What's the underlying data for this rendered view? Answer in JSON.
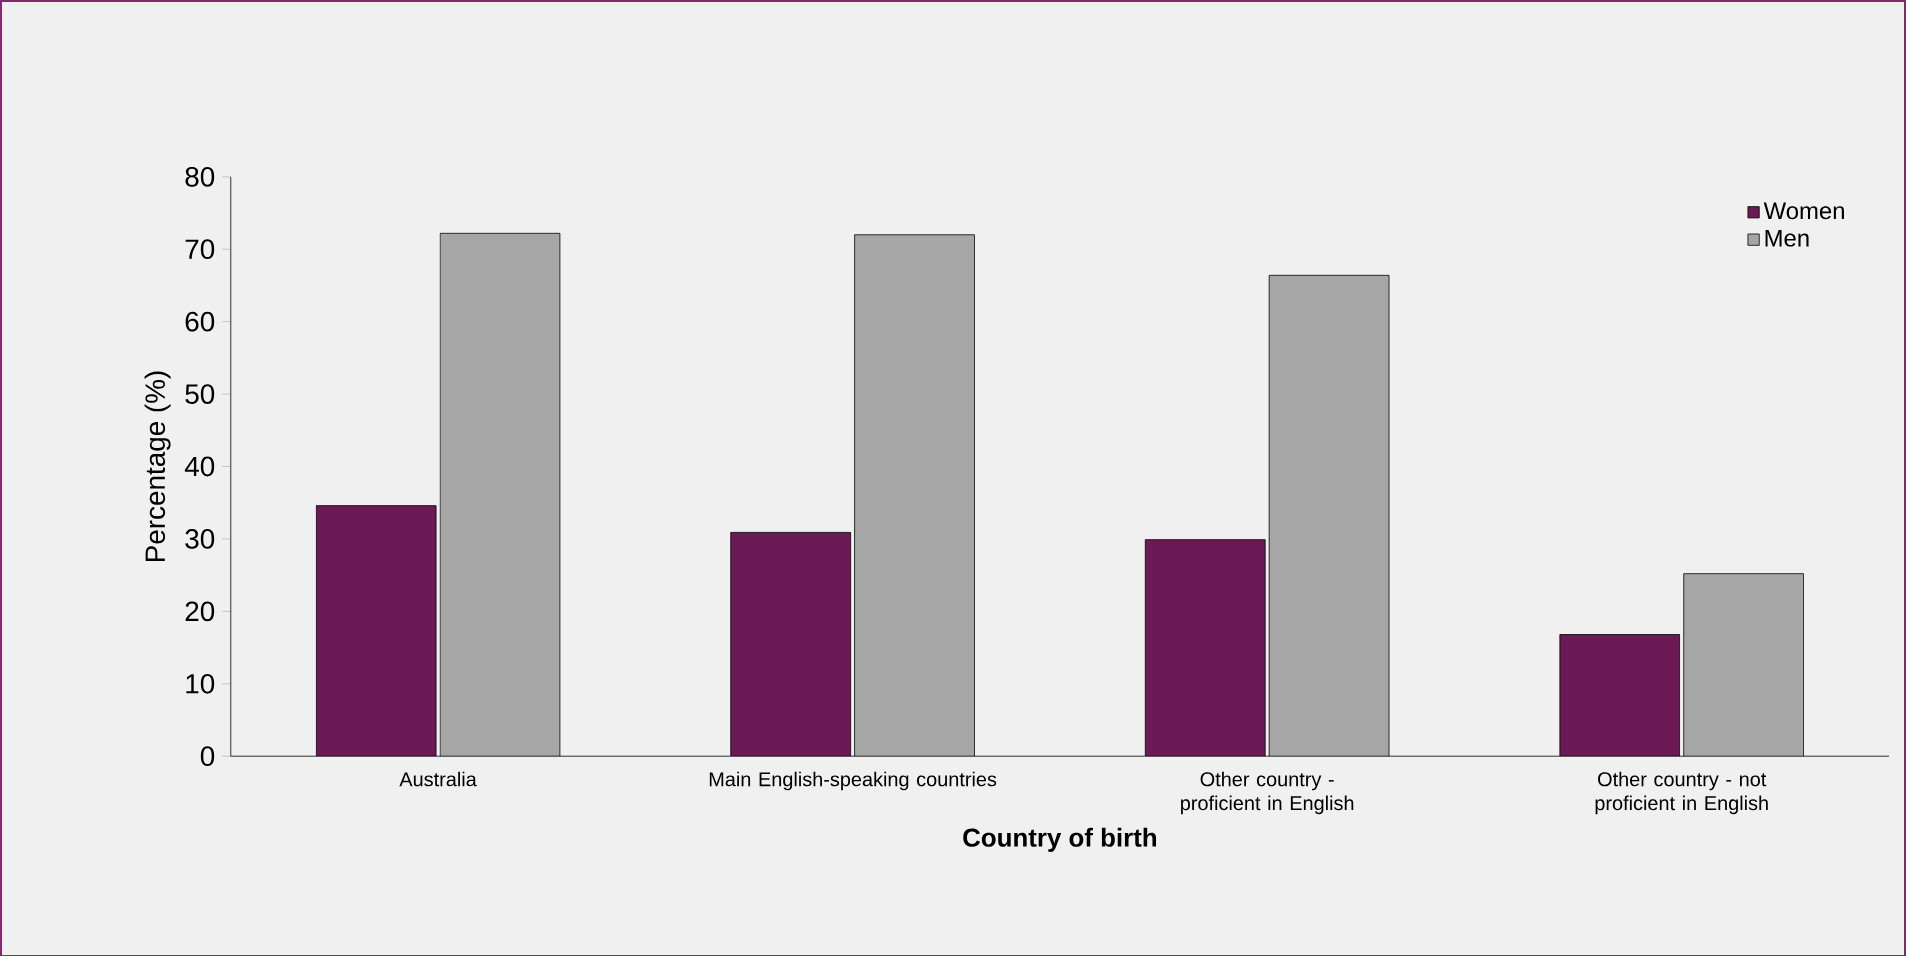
{
  "chart_data": {
    "type": "bar",
    "xlabel": "Country of birth",
    "ylabel": "Percentage (%)",
    "categories": [
      "Australia",
      "Main English-speaking countries",
      "Other country - proficient in English",
      "Other country - not proficient in English"
    ],
    "series": [
      {
        "name": "Women",
        "color": "#6b1a55",
        "values": [
          34.6,
          30.9,
          29.9,
          16.8
        ]
      },
      {
        "name": "Men",
        "color": "#a6a6a6",
        "values": [
          72.2,
          72.0,
          66.4,
          25.2
        ]
      }
    ],
    "ylim": [
      0,
      80
    ],
    "yticks": [
      0,
      10,
      20,
      30,
      40,
      50,
      60,
      70,
      80
    ],
    "legend": "top right"
  }
}
